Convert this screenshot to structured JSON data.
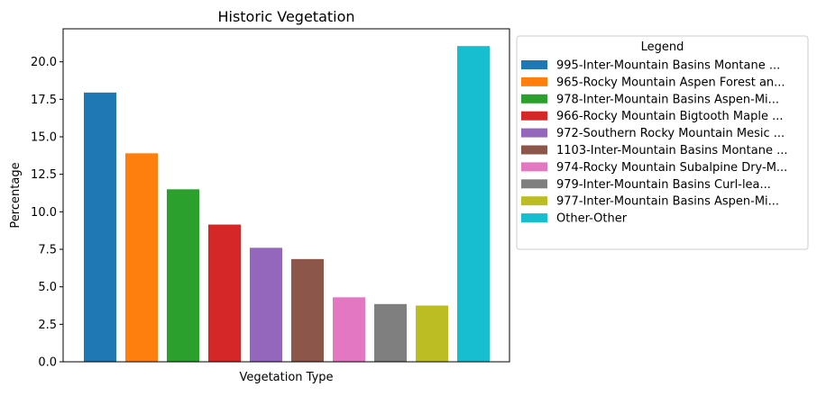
{
  "chart_data": {
    "type": "bar",
    "title": "Historic Vegetation",
    "xlabel": "Vegetation Type",
    "ylabel": "Percentage",
    "ylim": [
      0,
      22.2
    ],
    "yticks": [
      0.0,
      2.5,
      5.0,
      7.5,
      10.0,
      12.5,
      15.0,
      17.5,
      20.0
    ],
    "ytick_labels": [
      "0.0",
      "2.5",
      "5.0",
      "7.5",
      "10.0",
      "12.5",
      "15.0",
      "17.5",
      "20.0"
    ],
    "grid": false,
    "legend_title": "Legend",
    "legend_position": "outside-right-top",
    "series": [
      {
        "name": "995-Inter-Mountain Basins Montane ...",
        "value": 17.95,
        "color": "#1f77b4"
      },
      {
        "name": "965-Rocky Mountain Aspen Forest an...",
        "value": 13.9,
        "color": "#ff7f0e"
      },
      {
        "name": "978-Inter-Mountain Basins Aspen-Mi...",
        "value": 11.5,
        "color": "#2ca02c"
      },
      {
        "name": "966-Rocky Mountain Bigtooth Maple ...",
        "value": 9.15,
        "color": "#d62728"
      },
      {
        "name": "972-Southern Rocky Mountain Mesic ...",
        "value": 7.6,
        "color": "#9467bd"
      },
      {
        "name": "1103-Inter-Mountain Basins Montane ...",
        "value": 6.85,
        "color": "#8c564b"
      },
      {
        "name": "974-Rocky Mountain Subalpine Dry-M...",
        "value": 4.3,
        "color": "#e377c2"
      },
      {
        "name": "979-Inter-Mountain Basins Curl-lea...",
        "value": 3.85,
        "color": "#7f7f7f"
      },
      {
        "name": "977-Inter-Mountain Basins Aspen-Mi...",
        "value": 3.75,
        "color": "#bcbd22"
      },
      {
        "name": "Other-Other",
        "value": 21.05,
        "color": "#17becf"
      }
    ]
  }
}
